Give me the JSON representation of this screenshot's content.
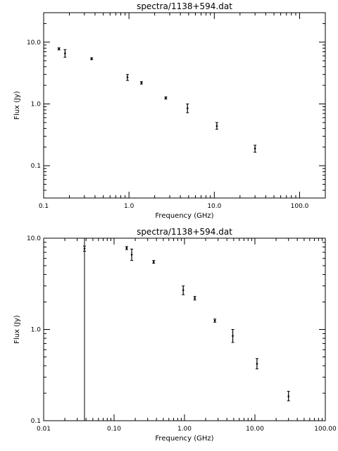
{
  "chart_data": [
    {
      "type": "scatter",
      "title": "spectra/1138+594.dat",
      "xlabel": "Frequency (GHz)",
      "ylabel": "Flux (Jy)",
      "xscale": "log",
      "yscale": "log",
      "xlim": [
        0.1,
        200
      ],
      "ylim": [
        0.03,
        30
      ],
      "xticks": [
        {
          "value": 0.1,
          "label": "0.1"
        },
        {
          "value": 1,
          "label": "1.0"
        },
        {
          "value": 10,
          "label": "10.0"
        },
        {
          "value": 100,
          "label": "100.0"
        }
      ],
      "yticks": [
        {
          "value": 0.1,
          "label": "0.1"
        },
        {
          "value": 1,
          "label": "1.0"
        },
        {
          "value": 10,
          "label": "10.0"
        }
      ],
      "points": [
        {
          "x": 0.151,
          "y": 7.8,
          "ylo": 7.5,
          "yhi": 8.1
        },
        {
          "x": 0.178,
          "y": 6.6,
          "ylo": 5.7,
          "yhi": 7.6
        },
        {
          "x": 0.365,
          "y": 5.4,
          "ylo": 5.2,
          "yhi": 5.6
        },
        {
          "x": 0.96,
          "y": 2.7,
          "ylo": 2.4,
          "yhi": 3.0
        },
        {
          "x": 1.4,
          "y": 2.2,
          "ylo": 2.1,
          "yhi": 2.3
        },
        {
          "x": 2.7,
          "y": 1.25,
          "ylo": 1.2,
          "yhi": 1.3
        },
        {
          "x": 4.85,
          "y": 0.85,
          "ylo": 0.72,
          "yhi": 1.0
        },
        {
          "x": 10.7,
          "y": 0.44,
          "ylo": 0.39,
          "yhi": 0.5
        },
        {
          "x": 30.0,
          "y": 0.19,
          "ylo": 0.165,
          "yhi": 0.215
        }
      ],
      "vlines": []
    },
    {
      "type": "scatter",
      "title": "spectra/1138+594.dat",
      "xlabel": "Frequency (GHz)",
      "ylabel": "Flux (Jy)",
      "xscale": "log",
      "yscale": "log",
      "xlim": [
        0.01,
        100
      ],
      "ylim": [
        0.1,
        10
      ],
      "xticks": [
        {
          "value": 0.01,
          "label": "0.01"
        },
        {
          "value": 0.1,
          "label": "0.10"
        },
        {
          "value": 1,
          "label": "1.00"
        },
        {
          "value": 10,
          "label": "10.00"
        },
        {
          "value": 100,
          "label": "100.00"
        }
      ],
      "yticks": [
        {
          "value": 0.1,
          "label": "0.1"
        },
        {
          "value": 1,
          "label": "1.0"
        },
        {
          "value": 10,
          "label": "10.0"
        }
      ],
      "points": [
        {
          "x": 0.038,
          "y": 7.7,
          "ylo": 7.2,
          "yhi": 8.2
        },
        {
          "x": 0.151,
          "y": 7.8,
          "ylo": 7.5,
          "yhi": 8.1
        },
        {
          "x": 0.178,
          "y": 6.6,
          "ylo": 5.7,
          "yhi": 7.6
        },
        {
          "x": 0.365,
          "y": 5.5,
          "ylo": 5.3,
          "yhi": 5.7
        },
        {
          "x": 0.96,
          "y": 2.7,
          "ylo": 2.4,
          "yhi": 3.0
        },
        {
          "x": 1.4,
          "y": 2.2,
          "ylo": 2.1,
          "yhi": 2.3
        },
        {
          "x": 2.7,
          "y": 1.25,
          "ylo": 1.2,
          "yhi": 1.3
        },
        {
          "x": 4.85,
          "y": 0.85,
          "ylo": 0.72,
          "yhi": 1.0
        },
        {
          "x": 10.7,
          "y": 0.42,
          "ylo": 0.37,
          "yhi": 0.48
        },
        {
          "x": 30.0,
          "y": 0.185,
          "ylo": 0.165,
          "yhi": 0.21
        }
      ],
      "vlines": [
        0.038
      ]
    }
  ]
}
